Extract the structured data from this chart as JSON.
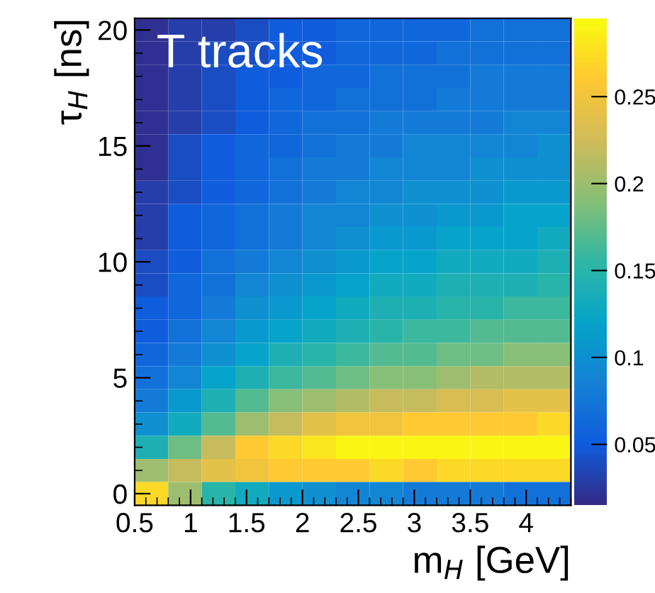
{
  "chart_data": {
    "type": "heatmap",
    "title": "T tracks",
    "xlabel": "m$_{H}$ [GeV]",
    "ylabel": "τ$_{H}$ [ns]",
    "xlim": [
      0.5,
      4.4
    ],
    "ylim": [
      -0.5,
      20.5
    ],
    "xticks": [
      0.5,
      1,
      1.5,
      2,
      2.5,
      3,
      3.5,
      4
    ],
    "yticks": [
      0,
      5,
      10,
      15,
      20
    ],
    "clim": [
      0.015,
      0.295
    ],
    "cticks": [
      0.05,
      0.1,
      0.15,
      0.2,
      0.25
    ],
    "cells": [
      [
        0.02,
        0.03,
        0.03,
        0.04,
        0.05,
        0.05,
        0.06,
        0.06,
        0.06,
        0.06,
        0.07,
        0.07,
        0.07
      ],
      [
        0.02,
        0.03,
        0.04,
        0.04,
        0.05,
        0.05,
        0.06,
        0.06,
        0.06,
        0.07,
        0.07,
        0.07,
        0.07
      ],
      [
        0.02,
        0.03,
        0.04,
        0.05,
        0.05,
        0.06,
        0.06,
        0.07,
        0.07,
        0.07,
        0.08,
        0.08,
        0.08
      ],
      [
        0.02,
        0.03,
        0.04,
        0.05,
        0.06,
        0.06,
        0.07,
        0.07,
        0.07,
        0.08,
        0.08,
        0.08,
        0.08
      ],
      [
        0.02,
        0.03,
        0.04,
        0.05,
        0.06,
        0.07,
        0.07,
        0.08,
        0.08,
        0.08,
        0.08,
        0.09,
        0.09
      ],
      [
        0.02,
        0.04,
        0.05,
        0.06,
        0.06,
        0.07,
        0.08,
        0.08,
        0.09,
        0.09,
        0.09,
        0.09,
        0.1
      ],
      [
        0.02,
        0.04,
        0.05,
        0.06,
        0.07,
        0.08,
        0.08,
        0.09,
        0.09,
        0.09,
        0.1,
        0.1,
        0.1
      ],
      [
        0.03,
        0.04,
        0.05,
        0.06,
        0.07,
        0.08,
        0.09,
        0.09,
        0.1,
        0.1,
        0.1,
        0.11,
        0.11
      ],
      [
        0.03,
        0.05,
        0.06,
        0.07,
        0.08,
        0.09,
        0.09,
        0.1,
        0.1,
        0.11,
        0.11,
        0.12,
        0.12
      ],
      [
        0.03,
        0.05,
        0.06,
        0.07,
        0.08,
        0.09,
        0.1,
        0.11,
        0.11,
        0.12,
        0.12,
        0.12,
        0.13
      ],
      [
        0.04,
        0.05,
        0.07,
        0.08,
        0.09,
        0.1,
        0.11,
        0.12,
        0.12,
        0.13,
        0.13,
        0.13,
        0.14
      ],
      [
        0.04,
        0.06,
        0.07,
        0.09,
        0.1,
        0.11,
        0.12,
        0.13,
        0.13,
        0.14,
        0.14,
        0.14,
        0.15
      ],
      [
        0.05,
        0.06,
        0.08,
        0.1,
        0.11,
        0.12,
        0.13,
        0.14,
        0.14,
        0.15,
        0.15,
        0.16,
        0.16
      ],
      [
        0.05,
        0.07,
        0.09,
        0.11,
        0.12,
        0.13,
        0.14,
        0.15,
        0.16,
        0.16,
        0.17,
        0.17,
        0.17
      ],
      [
        0.06,
        0.08,
        0.1,
        0.12,
        0.14,
        0.15,
        0.16,
        0.17,
        0.17,
        0.18,
        0.18,
        0.19,
        0.19
      ],
      [
        0.07,
        0.09,
        0.12,
        0.14,
        0.16,
        0.17,
        0.18,
        0.19,
        0.19,
        0.2,
        0.21,
        0.21,
        0.21
      ],
      [
        0.08,
        0.11,
        0.14,
        0.17,
        0.19,
        0.2,
        0.21,
        0.22,
        0.22,
        0.23,
        0.23,
        0.24,
        0.24
      ],
      [
        0.1,
        0.13,
        0.17,
        0.2,
        0.22,
        0.24,
        0.25,
        0.25,
        0.26,
        0.26,
        0.26,
        0.26,
        0.27
      ],
      [
        0.14,
        0.18,
        0.22,
        0.26,
        0.27,
        0.28,
        0.29,
        0.29,
        0.29,
        0.29,
        0.29,
        0.29,
        0.29
      ],
      [
        0.2,
        0.22,
        0.24,
        0.25,
        0.26,
        0.26,
        0.26,
        0.27,
        0.26,
        0.27,
        0.27,
        0.27,
        0.27
      ],
      [
        0.27,
        0.2,
        0.15,
        0.13,
        0.11,
        0.1,
        0.09,
        0.09,
        0.08,
        0.08,
        0.08,
        0.07,
        0.07
      ]
    ]
  }
}
